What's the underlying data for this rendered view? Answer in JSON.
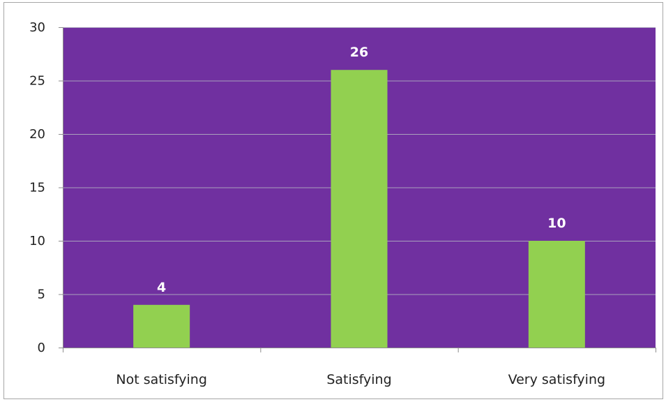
{
  "chart_data": {
    "type": "bar",
    "categories": [
      "Not satisfying",
      "Satisfying",
      "Very satisfying"
    ],
    "values": [
      4,
      26,
      10
    ],
    "data_labels": [
      "4",
      "26",
      "10"
    ],
    "title": "",
    "xlabel": "",
    "ylabel": "",
    "ylim": [
      0,
      30
    ],
    "y_ticks": [
      0,
      5,
      10,
      15,
      20,
      25,
      30
    ],
    "y_tick_labels": [
      "0",
      "5",
      "10",
      "15",
      "20",
      "25",
      "30"
    ],
    "grid": true,
    "legend": "none",
    "colors": {
      "plot_background": "#7030a0",
      "bar": "#92d050",
      "gridline": "#a9a1bd",
      "data_label": "#ffffff",
      "axis": "#8c8c8c"
    }
  }
}
